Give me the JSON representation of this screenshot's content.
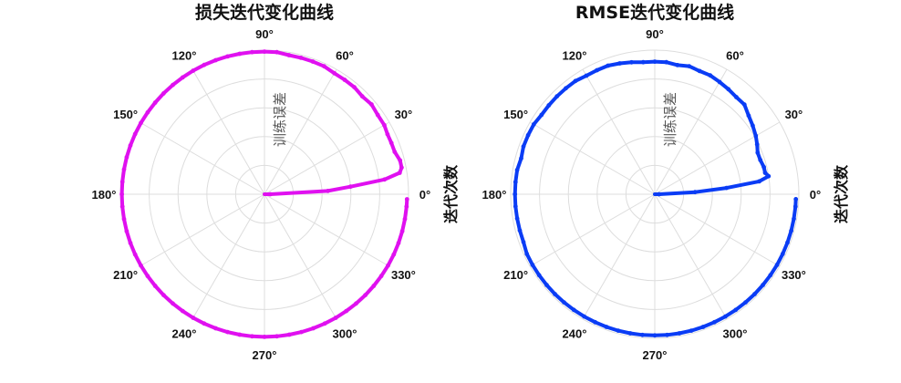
{
  "chart_data": [
    {
      "type": "line",
      "projection": "polar",
      "title": "损失迭代变化曲线",
      "radial_label": "训练误差",
      "angular_label": "迭代次数",
      "theta_ticks": [
        "0°",
        "30°",
        "60°",
        "90°",
        "120°",
        "150°",
        "180°",
        "210°",
        "240°",
        "270°",
        "300°",
        "330°"
      ],
      "grid": true,
      "color": "#e010f0",
      "rlim": [
        0,
        1
      ],
      "series": [
        {
          "theta_deg": [
            0,
            3,
            5,
            7,
            9,
            11,
            14,
            18,
            22,
            26,
            30,
            35,
            40,
            45,
            50,
            55,
            60,
            65,
            70,
            75,
            80,
            85,
            90,
            95,
            100,
            105,
            110,
            115,
            120,
            125,
            130,
            135,
            140,
            145,
            150,
            155,
            160,
            165,
            170,
            175,
            180,
            185,
            190,
            195,
            200,
            205,
            210,
            215,
            220,
            225,
            230,
            235,
            240,
            245,
            250,
            255,
            260,
            265,
            270,
            275,
            280,
            285,
            290,
            295,
            300,
            305,
            310,
            315,
            320,
            325,
            330,
            335,
            340,
            345,
            350,
            355,
            358
          ],
          "r": [
            0.04,
            0.44,
            0.6,
            0.84,
            0.95,
            0.97,
            0.97,
            0.95,
            0.95,
            0.95,
            0.96,
            0.96,
            0.97,
            0.96,
            0.97,
            0.97,
            0.97,
            0.98,
            0.98,
            0.98,
            0.98,
            0.99,
            0.99,
            0.99,
            0.99,
            0.99,
            0.99,
            0.99,
            0.99,
            0.99,
            0.99,
            0.99,
            0.99,
            0.99,
            0.99,
            0.99,
            0.99,
            0.99,
            0.99,
            0.99,
            0.99,
            0.99,
            0.99,
            0.99,
            0.99,
            0.99,
            0.99,
            0.99,
            0.99,
            0.99,
            0.99,
            0.99,
            0.99,
            0.99,
            0.99,
            0.99,
            0.99,
            0.99,
            0.99,
            0.99,
            0.99,
            0.99,
            0.99,
            0.99,
            0.99,
            0.99,
            0.99,
            0.99,
            0.99,
            0.99,
            0.99,
            0.99,
            0.99,
            0.99,
            0.99,
            0.99,
            0.99
          ]
        }
      ]
    },
    {
      "type": "line",
      "projection": "polar",
      "title": "RMSE迭代变化曲线",
      "radial_label": "训练误差",
      "angular_label": "迭代次数",
      "theta_ticks": [
        "0°",
        "30°",
        "60°",
        "90°",
        "120°",
        "150°",
        "180°",
        "210°",
        "240°",
        "270°",
        "300°",
        "330°"
      ],
      "grid": true,
      "color": "#0a3cf5",
      "rlim": [
        0,
        1
      ],
      "series": [
        {
          "theta_deg": [
            0,
            3,
            5,
            7,
            9,
            11,
            14,
            18,
            22,
            26,
            30,
            35,
            40,
            45,
            50,
            55,
            60,
            65,
            70,
            75,
            80,
            85,
            90,
            95,
            100,
            105,
            110,
            115,
            120,
            125,
            130,
            135,
            140,
            145,
            150,
            155,
            160,
            165,
            170,
            175,
            180,
            185,
            190,
            195,
            200,
            205,
            210,
            215,
            220,
            225,
            230,
            235,
            240,
            245,
            250,
            255,
            260,
            265,
            270,
            275,
            280,
            285,
            290,
            295,
            300,
            305,
            310,
            315,
            320,
            325,
            330,
            335,
            340,
            345,
            350,
            355,
            358
          ],
          "r": [
            0.03,
            0.28,
            0.5,
            0.73,
            0.8,
            0.78,
            0.78,
            0.77,
            0.77,
            0.79,
            0.81,
            0.83,
            0.85,
            0.88,
            0.88,
            0.89,
            0.9,
            0.91,
            0.91,
            0.92,
            0.91,
            0.92,
            0.92,
            0.92,
            0.93,
            0.94,
            0.95,
            0.95,
            0.95,
            0.96,
            0.96,
            0.96,
            0.96,
            0.96,
            0.97,
            0.97,
            0.97,
            0.96,
            0.97,
            0.97,
            0.97,
            0.97,
            0.97,
            0.97,
            0.97,
            0.98,
            0.98,
            0.98,
            0.98,
            0.98,
            0.98,
            0.98,
            0.98,
            0.98,
            0.98,
            0.98,
            0.98,
            0.98,
            0.98,
            0.98,
            0.98,
            0.98,
            0.98,
            0.98,
            0.98,
            0.98,
            0.98,
            0.98,
            0.98,
            0.98,
            0.98,
            0.98,
            0.98,
            0.98,
            0.98,
            0.98,
            0.98
          ]
        }
      ]
    }
  ]
}
